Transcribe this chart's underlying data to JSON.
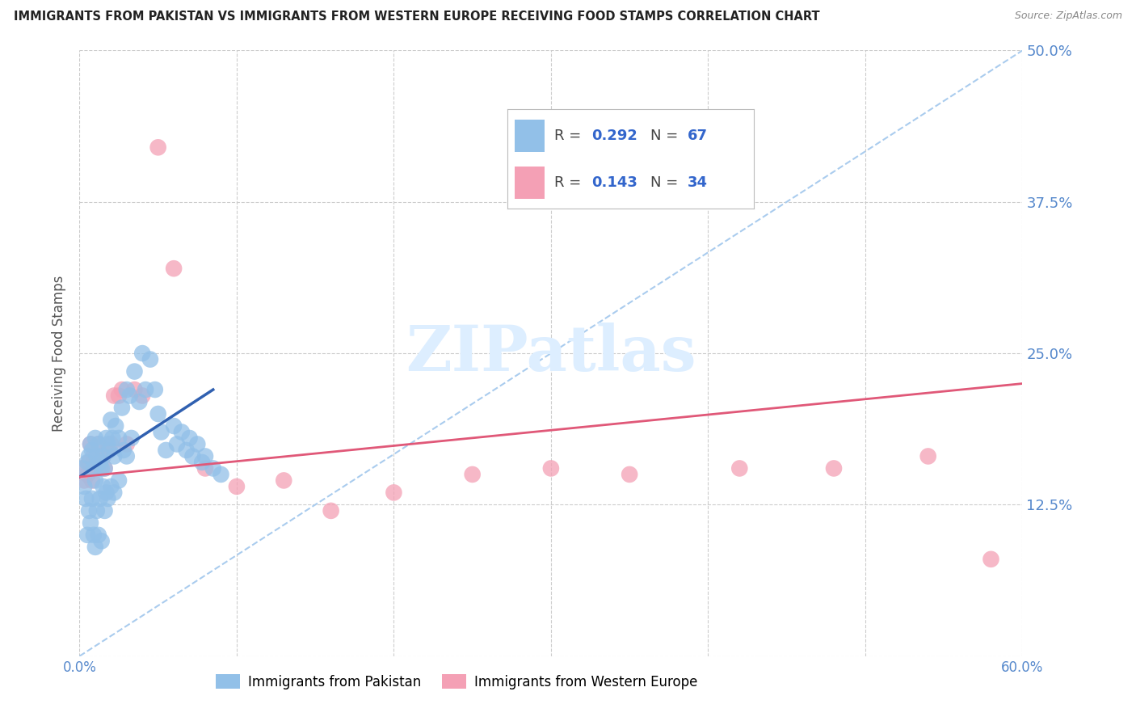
{
  "title": "IMMIGRANTS FROM PAKISTAN VS IMMIGRANTS FROM WESTERN EUROPE RECEIVING FOOD STAMPS CORRELATION CHART",
  "source": "Source: ZipAtlas.com",
  "ylabel": "Receiving Food Stamps",
  "xlim": [
    0.0,
    0.6
  ],
  "ylim": [
    0.0,
    0.5
  ],
  "xticks": [
    0.0,
    0.1,
    0.2,
    0.3,
    0.4,
    0.5,
    0.6
  ],
  "xticklabels": [
    "0.0%",
    "",
    "",
    "",
    "",
    "",
    "60.0%"
  ],
  "yticks": [
    0.0,
    0.125,
    0.25,
    0.375,
    0.5
  ],
  "yticklabels": [
    "",
    "12.5%",
    "25.0%",
    "37.5%",
    "50.0%"
  ],
  "pakistan_R": 0.292,
  "pakistan_N": 67,
  "western_europe_R": 0.143,
  "western_europe_N": 34,
  "blue_color": "#92C0E8",
  "pink_color": "#F4A0B5",
  "blue_line_color": "#3060B0",
  "pink_line_color": "#E05878",
  "diag_line_color": "#AACCEE",
  "tick_label_color": "#5588CC",
  "grid_color": "#CCCCCC",
  "background_color": "#FFFFFF",
  "watermark_text": "ZIPatlas",
  "watermark_color": "#DDEEFF",
  "legend_text_color": "#3366CC",
  "legend_n_color": "#3366CC",
  "pakistan_x": [
    0.002,
    0.003,
    0.004,
    0.005,
    0.005,
    0.006,
    0.006,
    0.007,
    0.007,
    0.008,
    0.008,
    0.009,
    0.009,
    0.01,
    0.01,
    0.01,
    0.011,
    0.011,
    0.012,
    0.012,
    0.013,
    0.013,
    0.014,
    0.014,
    0.015,
    0.015,
    0.016,
    0.016,
    0.017,
    0.017,
    0.018,
    0.018,
    0.019,
    0.02,
    0.02,
    0.021,
    0.022,
    0.022,
    0.023,
    0.025,
    0.025,
    0.027,
    0.028,
    0.03,
    0.03,
    0.032,
    0.033,
    0.035,
    0.038,
    0.04,
    0.042,
    0.045,
    0.048,
    0.05,
    0.052,
    0.055,
    0.06,
    0.062,
    0.065,
    0.068,
    0.07,
    0.072,
    0.075,
    0.078,
    0.08,
    0.085,
    0.09
  ],
  "pakistan_y": [
    0.155,
    0.14,
    0.13,
    0.16,
    0.1,
    0.165,
    0.12,
    0.175,
    0.11,
    0.17,
    0.13,
    0.155,
    0.1,
    0.18,
    0.145,
    0.09,
    0.165,
    0.12,
    0.175,
    0.1,
    0.16,
    0.13,
    0.155,
    0.095,
    0.165,
    0.14,
    0.155,
    0.12,
    0.18,
    0.135,
    0.175,
    0.13,
    0.17,
    0.195,
    0.14,
    0.18,
    0.165,
    0.135,
    0.19,
    0.18,
    0.145,
    0.205,
    0.17,
    0.22,
    0.165,
    0.215,
    0.18,
    0.235,
    0.21,
    0.25,
    0.22,
    0.245,
    0.22,
    0.2,
    0.185,
    0.17,
    0.19,
    0.175,
    0.185,
    0.17,
    0.18,
    0.165,
    0.175,
    0.16,
    0.165,
    0.155,
    0.15
  ],
  "western_europe_x": [
    0.002,
    0.003,
    0.005,
    0.006,
    0.007,
    0.008,
    0.009,
    0.01,
    0.012,
    0.013,
    0.015,
    0.016,
    0.018,
    0.02,
    0.022,
    0.025,
    0.027,
    0.03,
    0.035,
    0.04,
    0.05,
    0.06,
    0.08,
    0.1,
    0.13,
    0.16,
    0.2,
    0.25,
    0.3,
    0.35,
    0.42,
    0.48,
    0.54,
    0.58
  ],
  "western_europe_y": [
    0.155,
    0.145,
    0.15,
    0.16,
    0.175,
    0.145,
    0.165,
    0.155,
    0.175,
    0.155,
    0.165,
    0.155,
    0.17,
    0.175,
    0.215,
    0.215,
    0.22,
    0.175,
    0.22,
    0.215,
    0.42,
    0.32,
    0.155,
    0.14,
    0.145,
    0.12,
    0.135,
    0.15,
    0.155,
    0.15,
    0.155,
    0.155,
    0.165,
    0.08
  ],
  "pk_line_x": [
    0.0,
    0.085
  ],
  "pk_line_y": [
    0.148,
    0.22
  ],
  "we_line_x": [
    0.0,
    0.6
  ],
  "we_line_y": [
    0.148,
    0.225
  ]
}
